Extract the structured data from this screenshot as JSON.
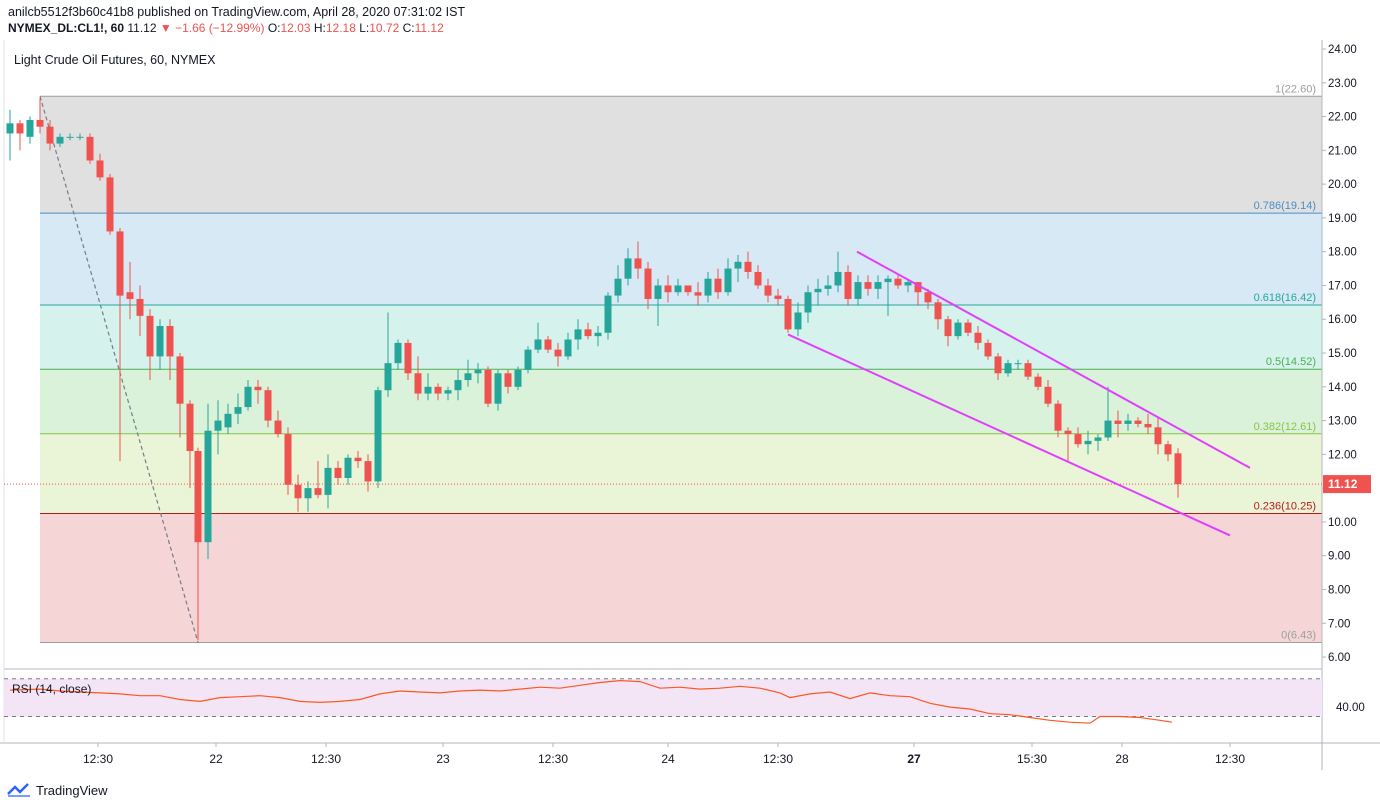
{
  "header": {
    "published_line": "anilcb5512f3b60c41b8 published on TradingView.com, April 28, 2020 07:31:02 IST",
    "symbol": "NYMEX_DL:CL1!, 60",
    "last": "11.12",
    "change": "▼ −1.66 (−12.99%)",
    "o_label": "O:",
    "o_val": "12.03",
    "h_label": "H:",
    "h_val": "12.18",
    "l_label": "L:",
    "l_val": "10.72",
    "c_label": "C:",
    "c_val": "11.12"
  },
  "footer": {
    "brand": "TradingView"
  },
  "colors": {
    "up": "#26a69a",
    "down": "#ef5350",
    "channel": "#e040fb",
    "rsi_line": "#ff5722",
    "rsi_band": "#f3e5f5"
  },
  "chart_data": [
    {
      "type": "candlestick",
      "title": "Light Crude Oil Futures, 60, NYMEX",
      "ylim": [
        5.6,
        24.3
      ],
      "y_ticks": [
        "24.00",
        "23.00",
        "22.00",
        "21.00",
        "20.00",
        "19.00",
        "18.00",
        "17.00",
        "16.00",
        "15.00",
        "14.00",
        "13.00",
        "12.00",
        "11.00",
        "10.00",
        "9.00",
        "8.00",
        "7.00",
        "6.00"
      ],
      "x_ticks": [
        "12:30",
        "22",
        "12:30",
        "23",
        "12:30",
        "24",
        "12:30",
        "27",
        "15:30",
        "28",
        "12:30"
      ],
      "last_price": "11.12",
      "fib_levels": [
        {
          "label": "1(22.60)",
          "value": 22.6,
          "line": "#9e9e9e",
          "fill": "#e0e0e0"
        },
        {
          "label": "0.786(19.14)",
          "value": 19.14,
          "line": "#4a8ec4",
          "fill": "#d6e9f5"
        },
        {
          "label": "0.618(16.42)",
          "value": 16.42,
          "line": "#26a69a",
          "fill": "#d6f2ec"
        },
        {
          "label": "0.5(14.52)",
          "value": 14.52,
          "line": "#4caf50",
          "fill": "#d9f2d9"
        },
        {
          "label": "0.382(12.61)",
          "value": 12.61,
          "line": "#8bc34a",
          "fill": "#eaf5d7"
        },
        {
          "label": "0.236(10.25)",
          "value": 10.25,
          "line": "#b71c1c",
          "fill": "#f5d5d5"
        },
        {
          "label": "0(6.43)",
          "value": 6.43,
          "line": "#9e9e9e",
          "fill": null
        }
      ],
      "channel": [
        {
          "from": [
            857,
            18.0
          ],
          "to": [
            1250,
            11.6
          ]
        },
        {
          "from": [
            788,
            15.55
          ],
          "to": [
            1230,
            9.6
          ]
        }
      ],
      "trend_line": {
        "from": [
          40,
          22.6
        ],
        "to": [
          198,
          6.43
        ]
      },
      "candles": [
        {
          "x": 10,
          "o": 21.5,
          "h": 22.2,
          "l": 20.7,
          "c": 21.8
        },
        {
          "x": 20,
          "o": 21.8,
          "h": 21.9,
          "l": 21.0,
          "c": 21.5
        },
        {
          "x": 30,
          "o": 21.4,
          "h": 22.0,
          "l": 21.2,
          "c": 21.9
        },
        {
          "x": 40,
          "o": 21.9,
          "h": 22.55,
          "l": 21.5,
          "c": 21.7
        },
        {
          "x": 50,
          "o": 21.7,
          "h": 21.9,
          "l": 21.0,
          "c": 21.2
        },
        {
          "x": 60,
          "o": 21.2,
          "h": 21.5,
          "l": 21.1,
          "c": 21.4
        },
        {
          "x": 70,
          "o": 21.4,
          "h": 21.5,
          "l": 21.3,
          "c": 21.4
        },
        {
          "x": 80,
          "o": 21.4,
          "h": 21.5,
          "l": 21.3,
          "c": 21.4
        },
        {
          "x": 90,
          "o": 21.4,
          "h": 21.5,
          "l": 20.6,
          "c": 20.7
        },
        {
          "x": 100,
          "o": 20.7,
          "h": 20.9,
          "l": 20.1,
          "c": 20.2
        },
        {
          "x": 110,
          "o": 20.2,
          "h": 20.3,
          "l": 18.5,
          "c": 18.6
        },
        {
          "x": 120,
          "o": 18.6,
          "h": 18.7,
          "l": 11.8,
          "c": 16.7
        },
        {
          "x": 130,
          "o": 16.8,
          "h": 17.7,
          "l": 16.0,
          "c": 16.6
        },
        {
          "x": 140,
          "o": 16.6,
          "h": 17.0,
          "l": 15.5,
          "c": 16.1
        },
        {
          "x": 150,
          "o": 16.1,
          "h": 16.3,
          "l": 14.2,
          "c": 14.9
        },
        {
          "x": 160,
          "o": 14.9,
          "h": 16.0,
          "l": 14.5,
          "c": 15.8
        },
        {
          "x": 170,
          "o": 15.8,
          "h": 16.0,
          "l": 14.2,
          "c": 14.9
        },
        {
          "x": 180,
          "o": 14.9,
          "h": 15.0,
          "l": 12.5,
          "c": 13.5
        },
        {
          "x": 190,
          "o": 13.5,
          "h": 13.6,
          "l": 11.0,
          "c": 12.1
        },
        {
          "x": 198,
          "o": 12.1,
          "h": 12.2,
          "l": 6.5,
          "c": 9.4
        },
        {
          "x": 208,
          "o": 9.4,
          "h": 13.5,
          "l": 8.9,
          "c": 12.7
        },
        {
          "x": 218,
          "o": 12.7,
          "h": 13.6,
          "l": 12.0,
          "c": 13.0
        },
        {
          "x": 228,
          "o": 12.8,
          "h": 13.5,
          "l": 12.6,
          "c": 13.2
        },
        {
          "x": 238,
          "o": 13.2,
          "h": 13.8,
          "l": 12.9,
          "c": 13.4
        },
        {
          "x": 248,
          "o": 13.4,
          "h": 14.2,
          "l": 13.3,
          "c": 14.0
        },
        {
          "x": 258,
          "o": 14.0,
          "h": 14.2,
          "l": 13.5,
          "c": 13.9
        },
        {
          "x": 268,
          "o": 13.9,
          "h": 14.0,
          "l": 12.8,
          "c": 13.0
        },
        {
          "x": 278,
          "o": 13.0,
          "h": 13.3,
          "l": 12.5,
          "c": 12.6
        },
        {
          "x": 288,
          "o": 12.6,
          "h": 12.8,
          "l": 10.8,
          "c": 11.1
        },
        {
          "x": 298,
          "o": 11.1,
          "h": 11.4,
          "l": 10.3,
          "c": 10.7
        },
        {
          "x": 308,
          "o": 10.7,
          "h": 11.2,
          "l": 10.3,
          "c": 11.0
        },
        {
          "x": 318,
          "o": 11.0,
          "h": 11.8,
          "l": 10.7,
          "c": 10.8
        },
        {
          "x": 328,
          "o": 10.8,
          "h": 12.0,
          "l": 10.4,
          "c": 11.6
        },
        {
          "x": 338,
          "o": 11.6,
          "h": 11.8,
          "l": 11.1,
          "c": 11.3
        },
        {
          "x": 348,
          "o": 11.3,
          "h": 12.0,
          "l": 11.1,
          "c": 11.9
        },
        {
          "x": 358,
          "o": 11.9,
          "h": 12.1,
          "l": 11.6,
          "c": 11.8
        },
        {
          "x": 368,
          "o": 11.8,
          "h": 12.0,
          "l": 10.9,
          "c": 11.2
        },
        {
          "x": 378,
          "o": 11.2,
          "h": 14.0,
          "l": 11.0,
          "c": 13.9
        },
        {
          "x": 388,
          "o": 13.9,
          "h": 16.2,
          "l": 13.7,
          "c": 14.7
        },
        {
          "x": 398,
          "o": 14.7,
          "h": 15.4,
          "l": 14.5,
          "c": 15.3
        },
        {
          "x": 408,
          "o": 15.3,
          "h": 15.4,
          "l": 14.2,
          "c": 14.4
        },
        {
          "x": 418,
          "o": 14.4,
          "h": 14.9,
          "l": 13.6,
          "c": 13.8
        },
        {
          "x": 428,
          "o": 13.8,
          "h": 14.4,
          "l": 13.6,
          "c": 14.0
        },
        {
          "x": 438,
          "o": 14.0,
          "h": 14.1,
          "l": 13.6,
          "c": 13.8
        },
        {
          "x": 448,
          "o": 13.8,
          "h": 14.0,
          "l": 13.6,
          "c": 13.9
        },
        {
          "x": 458,
          "o": 13.9,
          "h": 14.5,
          "l": 13.6,
          "c": 14.2
        },
        {
          "x": 468,
          "o": 14.2,
          "h": 14.8,
          "l": 14.0,
          "c": 14.4
        },
        {
          "x": 478,
          "o": 14.4,
          "h": 14.7,
          "l": 14.1,
          "c": 14.5
        },
        {
          "x": 488,
          "o": 14.5,
          "h": 14.6,
          "l": 13.4,
          "c": 13.5
        },
        {
          "x": 498,
          "o": 13.5,
          "h": 14.5,
          "l": 13.3,
          "c": 14.4
        },
        {
          "x": 508,
          "o": 14.4,
          "h": 14.5,
          "l": 13.8,
          "c": 14.0
        },
        {
          "x": 518,
          "o": 14.0,
          "h": 14.6,
          "l": 13.9,
          "c": 14.5
        },
        {
          "x": 528,
          "o": 14.5,
          "h": 15.2,
          "l": 14.4,
          "c": 15.1
        },
        {
          "x": 538,
          "o": 15.1,
          "h": 15.9,
          "l": 15.0,
          "c": 15.4
        },
        {
          "x": 548,
          "o": 15.4,
          "h": 15.5,
          "l": 15.0,
          "c": 15.1
        },
        {
          "x": 558,
          "o": 15.1,
          "h": 15.3,
          "l": 14.6,
          "c": 14.9
        },
        {
          "x": 568,
          "o": 14.9,
          "h": 15.6,
          "l": 14.8,
          "c": 15.4
        },
        {
          "x": 578,
          "o": 15.4,
          "h": 16.0,
          "l": 15.1,
          "c": 15.7
        },
        {
          "x": 588,
          "o": 15.7,
          "h": 15.9,
          "l": 15.4,
          "c": 15.5
        },
        {
          "x": 598,
          "o": 15.5,
          "h": 15.8,
          "l": 15.2,
          "c": 15.6
        },
        {
          "x": 608,
          "o": 15.6,
          "h": 16.8,
          "l": 15.4,
          "c": 16.7
        },
        {
          "x": 618,
          "o": 16.7,
          "h": 17.6,
          "l": 16.5,
          "c": 17.2
        },
        {
          "x": 628,
          "o": 17.2,
          "h": 18.1,
          "l": 17.0,
          "c": 17.8
        },
        {
          "x": 638,
          "o": 17.8,
          "h": 18.3,
          "l": 17.2,
          "c": 17.5
        },
        {
          "x": 648,
          "o": 17.5,
          "h": 17.7,
          "l": 16.3,
          "c": 16.6
        },
        {
          "x": 658,
          "o": 16.6,
          "h": 17.2,
          "l": 15.8,
          "c": 17.0
        },
        {
          "x": 668,
          "o": 17.0,
          "h": 17.3,
          "l": 16.5,
          "c": 16.8
        },
        {
          "x": 678,
          "o": 16.8,
          "h": 17.2,
          "l": 16.7,
          "c": 17.0
        },
        {
          "x": 688,
          "o": 17.0,
          "h": 17.0,
          "l": 16.7,
          "c": 16.8
        },
        {
          "x": 698,
          "o": 16.8,
          "h": 17.1,
          "l": 16.4,
          "c": 16.7
        },
        {
          "x": 708,
          "o": 16.7,
          "h": 17.4,
          "l": 16.5,
          "c": 17.2
        },
        {
          "x": 718,
          "o": 17.2,
          "h": 17.5,
          "l": 16.6,
          "c": 16.8
        },
        {
          "x": 728,
          "o": 16.8,
          "h": 17.8,
          "l": 16.7,
          "c": 17.5
        },
        {
          "x": 738,
          "o": 17.5,
          "h": 17.9,
          "l": 17.1,
          "c": 17.7
        },
        {
          "x": 748,
          "o": 17.7,
          "h": 18.0,
          "l": 17.2,
          "c": 17.4
        },
        {
          "x": 758,
          "o": 17.4,
          "h": 17.6,
          "l": 16.9,
          "c": 17.0
        },
        {
          "x": 768,
          "o": 17.0,
          "h": 17.2,
          "l": 16.5,
          "c": 16.7
        },
        {
          "x": 778,
          "o": 16.7,
          "h": 16.9,
          "l": 16.4,
          "c": 16.6
        },
        {
          "x": 788,
          "o": 16.6,
          "h": 16.7,
          "l": 15.6,
          "c": 15.7
        },
        {
          "x": 798,
          "o": 15.7,
          "h": 16.5,
          "l": 15.5,
          "c": 16.2
        },
        {
          "x": 808,
          "o": 16.2,
          "h": 17.0,
          "l": 15.9,
          "c": 16.8
        },
        {
          "x": 818,
          "o": 16.8,
          "h": 17.2,
          "l": 16.4,
          "c": 16.9
        },
        {
          "x": 828,
          "o": 16.9,
          "h": 17.3,
          "l": 16.7,
          "c": 17.0
        },
        {
          "x": 838,
          "o": 17.0,
          "h": 18.0,
          "l": 16.8,
          "c": 17.4
        },
        {
          "x": 848,
          "o": 17.4,
          "h": 17.6,
          "l": 16.4,
          "c": 16.6
        },
        {
          "x": 858,
          "o": 16.6,
          "h": 17.3,
          "l": 16.4,
          "c": 17.1
        },
        {
          "x": 868,
          "o": 17.1,
          "h": 17.3,
          "l": 16.7,
          "c": 16.9
        },
        {
          "x": 878,
          "o": 16.9,
          "h": 17.3,
          "l": 16.6,
          "c": 17.1
        },
        {
          "x": 888,
          "o": 17.1,
          "h": 17.3,
          "l": 16.1,
          "c": 17.2
        },
        {
          "x": 898,
          "o": 17.2,
          "h": 17.3,
          "l": 16.9,
          "c": 17.0
        },
        {
          "x": 908,
          "o": 17.0,
          "h": 17.2,
          "l": 16.8,
          "c": 17.1
        },
        {
          "x": 918,
          "o": 17.1,
          "h": 17.1,
          "l": 16.4,
          "c": 16.8
        },
        {
          "x": 928,
          "o": 16.8,
          "h": 16.9,
          "l": 16.3,
          "c": 16.5
        },
        {
          "x": 938,
          "o": 16.5,
          "h": 16.6,
          "l": 15.7,
          "c": 16.0
        },
        {
          "x": 948,
          "o": 16.0,
          "h": 16.1,
          "l": 15.2,
          "c": 15.5
        },
        {
          "x": 958,
          "o": 15.5,
          "h": 16.0,
          "l": 15.4,
          "c": 15.9
        },
        {
          "x": 968,
          "o": 15.9,
          "h": 16.0,
          "l": 15.5,
          "c": 15.6
        },
        {
          "x": 978,
          "o": 15.6,
          "h": 15.8,
          "l": 15.1,
          "c": 15.3
        },
        {
          "x": 988,
          "o": 15.3,
          "h": 15.4,
          "l": 14.8,
          "c": 14.9
        },
        {
          "x": 998,
          "o": 14.9,
          "h": 15.0,
          "l": 14.2,
          "c": 14.4
        },
        {
          "x": 1008,
          "o": 14.4,
          "h": 14.8,
          "l": 14.3,
          "c": 14.7
        },
        {
          "x": 1018,
          "o": 14.7,
          "h": 14.8,
          "l": 14.5,
          "c": 14.7
        },
        {
          "x": 1028,
          "o": 14.7,
          "h": 14.8,
          "l": 14.2,
          "c": 14.3
        },
        {
          "x": 1038,
          "o": 14.3,
          "h": 14.4,
          "l": 13.9,
          "c": 14.0
        },
        {
          "x": 1048,
          "o": 14.0,
          "h": 14.2,
          "l": 13.4,
          "c": 13.5
        },
        {
          "x": 1058,
          "o": 13.5,
          "h": 13.6,
          "l": 12.5,
          "c": 12.7
        },
        {
          "x": 1068,
          "o": 12.7,
          "h": 12.8,
          "l": 11.8,
          "c": 12.6
        },
        {
          "x": 1078,
          "o": 12.6,
          "h": 12.8,
          "l": 12.2,
          "c": 12.3
        },
        {
          "x": 1088,
          "o": 12.3,
          "h": 12.7,
          "l": 12.0,
          "c": 12.4
        },
        {
          "x": 1098,
          "o": 12.4,
          "h": 12.6,
          "l": 12.1,
          "c": 12.5
        },
        {
          "x": 1108,
          "o": 12.5,
          "h": 14.0,
          "l": 12.4,
          "c": 13.0
        },
        {
          "x": 1118,
          "o": 13.0,
          "h": 13.3,
          "l": 12.5,
          "c": 12.9
        },
        {
          "x": 1128,
          "o": 12.9,
          "h": 13.2,
          "l": 12.7,
          "c": 13.0
        },
        {
          "x": 1138,
          "o": 13.0,
          "h": 13.1,
          "l": 12.8,
          "c": 12.9
        },
        {
          "x": 1148,
          "o": 12.9,
          "h": 13.2,
          "l": 12.6,
          "c": 12.8
        },
        {
          "x": 1158,
          "o": 12.8,
          "h": 13.1,
          "l": 12.0,
          "c": 12.3
        },
        {
          "x": 1168,
          "o": 12.3,
          "h": 12.4,
          "l": 11.8,
          "c": 12.0
        },
        {
          "x": 1178,
          "o": 12.03,
          "h": 12.18,
          "l": 10.72,
          "c": 11.12
        }
      ]
    },
    {
      "type": "line",
      "title": "RSI (14, close)",
      "y_ticks": [
        "40.00"
      ],
      "ylim": [
        20,
        75
      ],
      "bands": [
        70,
        30
      ],
      "x": [
        10,
        40,
        60,
        80,
        100,
        120,
        140,
        160,
        180,
        200,
        220,
        240,
        260,
        280,
        300,
        320,
        340,
        360,
        380,
        400,
        420,
        440,
        460,
        480,
        500,
        520,
        540,
        560,
        580,
        600,
        620,
        640,
        660,
        680,
        700,
        720,
        740,
        760,
        780,
        790,
        810,
        830,
        850,
        870,
        890,
        910,
        930,
        950,
        970,
        990,
        1010,
        1030,
        1050,
        1070,
        1090,
        1100,
        1120,
        1140,
        1160,
        1172
      ],
      "values": [
        58,
        59,
        57,
        56,
        55,
        54,
        52,
        52,
        48,
        46,
        50,
        51,
        52,
        50,
        46,
        45,
        46,
        48,
        54,
        57,
        56,
        55,
        57,
        58,
        57,
        59,
        61,
        60,
        63,
        66,
        68,
        67,
        60,
        61,
        59,
        60,
        62,
        60,
        55,
        50,
        54,
        56,
        49,
        55,
        52,
        51,
        44,
        40,
        38,
        33,
        32,
        29,
        26,
        24,
        23,
        30,
        30,
        29,
        26,
        24
      ]
    }
  ]
}
